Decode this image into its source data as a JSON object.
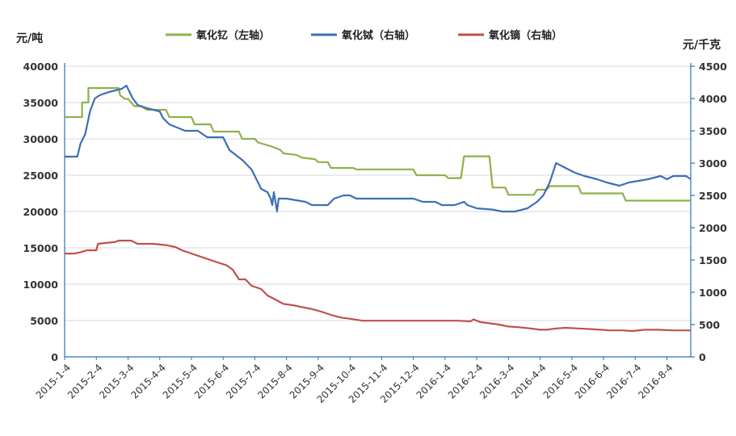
{
  "chart_data": {
    "type": "line",
    "left_unit": "元/吨",
    "right_unit": "元/千克",
    "legend_position": "top-center",
    "grid": true,
    "y_left": {
      "min": 0,
      "max": 40000,
      "ticks": [
        "0",
        "5000",
        "10000",
        "15000",
        "20000",
        "25000",
        "30000",
        "35000",
        "40000"
      ]
    },
    "y_right": {
      "min": 0,
      "max": 4500,
      "ticks": [
        "0",
        "500",
        "1000",
        "1500",
        "2000",
        "2500",
        "3000",
        "3500",
        "4000",
        "4500"
      ]
    },
    "x_labels": [
      "2015-1-4",
      "2015-2-4",
      "2015-3-4",
      "2015-4-4",
      "2015-5-4",
      "2015-6-4",
      "2015-7-4",
      "2015-8-4",
      "2015-9-4",
      "2015-10-4",
      "2015-11-4",
      "2015-12-4",
      "2016-1-4",
      "2016-2-4",
      "2016-3-4",
      "2016-4-4",
      "2016-5-4",
      "2016-6-4",
      "2016-7-4",
      "2016-8-4"
    ],
    "x_range_months": [
      0,
      19.75
    ],
    "series": [
      {
        "name": "氧化钇（左轴）",
        "axis": "left",
        "color": "#8fb04a",
        "points": [
          [
            0,
            33000
          ],
          [
            0.55,
            33000
          ],
          [
            0.55,
            35000
          ],
          [
            0.75,
            35000
          ],
          [
            0.75,
            37000
          ],
          [
            1.7,
            37000
          ],
          [
            1.7,
            37000
          ],
          [
            1.75,
            36000
          ],
          [
            1.9,
            35500
          ],
          [
            2.0,
            35500
          ],
          [
            2.2,
            34500
          ],
          [
            2.4,
            34500
          ],
          [
            2.6,
            34000
          ],
          [
            3.2,
            34000
          ],
          [
            3.3,
            33000
          ],
          [
            4.0,
            33000
          ],
          [
            4.1,
            32000
          ],
          [
            4.6,
            32000
          ],
          [
            4.7,
            31000
          ],
          [
            5.5,
            31000
          ],
          [
            5.6,
            30000
          ],
          [
            6.0,
            30000
          ],
          [
            6.1,
            29500
          ],
          [
            6.5,
            29000
          ],
          [
            6.8,
            28500
          ],
          [
            6.9,
            28000
          ],
          [
            7.3,
            27800
          ],
          [
            7.5,
            27400
          ],
          [
            7.9,
            27200
          ],
          [
            8.0,
            26800
          ],
          [
            8.3,
            26800
          ],
          [
            8.4,
            26000
          ],
          [
            9.1,
            26000
          ],
          [
            9.2,
            25800
          ],
          [
            11.0,
            25800
          ],
          [
            11.1,
            25000
          ],
          [
            12.0,
            25000
          ],
          [
            12.1,
            24600
          ],
          [
            12.5,
            24600
          ],
          [
            12.6,
            27600
          ],
          [
            13.4,
            27600
          ],
          [
            13.5,
            23300
          ],
          [
            13.9,
            23300
          ],
          [
            14.0,
            22300
          ],
          [
            14.8,
            22300
          ],
          [
            14.9,
            23000
          ],
          [
            15.2,
            23000
          ],
          [
            15.3,
            23500
          ],
          [
            16.2,
            23500
          ],
          [
            16.3,
            22500
          ],
          [
            17.6,
            22500
          ],
          [
            17.7,
            21500
          ],
          [
            18.6,
            21500
          ],
          [
            18.7,
            21500
          ],
          [
            19.75,
            21500
          ]
        ]
      },
      {
        "name": "氧化铽（右轴）",
        "axis": "right",
        "color": "#3d6fb5",
        "points": [
          [
            0,
            3100
          ],
          [
            0.4,
            3100
          ],
          [
            0.5,
            3300
          ],
          [
            0.65,
            3450
          ],
          [
            0.8,
            3800
          ],
          [
            0.95,
            4000
          ],
          [
            1.1,
            4050
          ],
          [
            1.4,
            4100
          ],
          [
            1.8,
            4150
          ],
          [
            1.95,
            4200
          ],
          [
            2.05,
            4100
          ],
          [
            2.15,
            4000
          ],
          [
            2.3,
            3900
          ],
          [
            2.6,
            3850
          ],
          [
            3.0,
            3800
          ],
          [
            3.1,
            3700
          ],
          [
            3.3,
            3600
          ],
          [
            3.8,
            3500
          ],
          [
            4.2,
            3500
          ],
          [
            4.5,
            3400
          ],
          [
            5.0,
            3400
          ],
          [
            5.1,
            3300
          ],
          [
            5.2,
            3200
          ],
          [
            5.6,
            3050
          ],
          [
            5.9,
            2900
          ],
          [
            6.0,
            2800
          ],
          [
            6.1,
            2700
          ],
          [
            6.2,
            2600
          ],
          [
            6.4,
            2550
          ],
          [
            6.5,
            2450
          ],
          [
            6.55,
            2350
          ],
          [
            6.6,
            2550
          ],
          [
            6.7,
            2250
          ],
          [
            6.75,
            2450
          ],
          [
            7.0,
            2450
          ],
          [
            7.6,
            2400
          ],
          [
            7.8,
            2350
          ],
          [
            8.3,
            2350
          ],
          [
            8.5,
            2450
          ],
          [
            8.8,
            2500
          ],
          [
            9.0,
            2500
          ],
          [
            9.2,
            2450
          ],
          [
            9.6,
            2450
          ],
          [
            10.0,
            2450
          ],
          [
            10.4,
            2450
          ],
          [
            10.8,
            2450
          ],
          [
            11.0,
            2450
          ],
          [
            11.3,
            2400
          ],
          [
            11.7,
            2400
          ],
          [
            11.9,
            2350
          ],
          [
            12.3,
            2350
          ],
          [
            12.6,
            2400
          ],
          [
            12.7,
            2350
          ],
          [
            13.0,
            2300
          ],
          [
            13.5,
            2280
          ],
          [
            13.8,
            2250
          ],
          [
            14.2,
            2250
          ],
          [
            14.6,
            2300
          ],
          [
            14.9,
            2400
          ],
          [
            15.1,
            2500
          ],
          [
            15.3,
            2700
          ],
          [
            15.5,
            3000
          ],
          [
            15.7,
            2950
          ],
          [
            15.9,
            2900
          ],
          [
            16.1,
            2850
          ],
          [
            16.4,
            2800
          ],
          [
            16.8,
            2750
          ],
          [
            17.1,
            2700
          ],
          [
            17.5,
            2650
          ],
          [
            17.8,
            2700
          ],
          [
            18.4,
            2750
          ],
          [
            18.8,
            2800
          ],
          [
            19.0,
            2750
          ],
          [
            19.2,
            2800
          ],
          [
            19.6,
            2800
          ],
          [
            19.75,
            2750
          ]
        ]
      },
      {
        "name": "氧化镝（右轴）",
        "axis": "right",
        "color": "#c0504d",
        "points": [
          [
            0,
            1600
          ],
          [
            0.3,
            1600
          ],
          [
            0.5,
            1620
          ],
          [
            0.7,
            1650
          ],
          [
            1.0,
            1650
          ],
          [
            1.05,
            1750
          ],
          [
            1.6,
            1780
          ],
          [
            1.7,
            1800
          ],
          [
            2.1,
            1800
          ],
          [
            2.3,
            1750
          ],
          [
            2.8,
            1750
          ],
          [
            3.2,
            1730
          ],
          [
            3.5,
            1700
          ],
          [
            3.7,
            1650
          ],
          [
            4.0,
            1600
          ],
          [
            4.3,
            1550
          ],
          [
            4.6,
            1500
          ],
          [
            4.9,
            1450
          ],
          [
            5.1,
            1420
          ],
          [
            5.3,
            1350
          ],
          [
            5.5,
            1200
          ],
          [
            5.7,
            1200
          ],
          [
            5.9,
            1100
          ],
          [
            6.2,
            1050
          ],
          [
            6.4,
            950
          ],
          [
            6.6,
            900
          ],
          [
            6.9,
            820
          ],
          [
            7.2,
            800
          ],
          [
            7.5,
            770
          ],
          [
            7.8,
            740
          ],
          [
            8.1,
            700
          ],
          [
            8.4,
            650
          ],
          [
            8.7,
            610
          ],
          [
            9.0,
            590
          ],
          [
            9.4,
            560
          ],
          [
            9.8,
            560
          ],
          [
            10.5,
            560
          ],
          [
            11.5,
            560
          ],
          [
            12.0,
            560
          ],
          [
            12.4,
            560
          ],
          [
            12.8,
            550
          ],
          [
            12.9,
            580
          ],
          [
            13.1,
            540
          ],
          [
            13.4,
            520
          ],
          [
            13.7,
            500
          ],
          [
            14.0,
            470
          ],
          [
            14.3,
            460
          ],
          [
            14.7,
            440
          ],
          [
            15.0,
            420
          ],
          [
            15.2,
            420
          ],
          [
            15.5,
            440
          ],
          [
            15.8,
            450
          ],
          [
            16.2,
            440
          ],
          [
            16.6,
            430
          ],
          [
            16.9,
            420
          ],
          [
            17.2,
            410
          ],
          [
            17.6,
            410
          ],
          [
            17.9,
            400
          ],
          [
            18.3,
            420
          ],
          [
            18.7,
            420
          ],
          [
            19.2,
            410
          ],
          [
            19.75,
            410
          ]
        ]
      }
    ]
  }
}
